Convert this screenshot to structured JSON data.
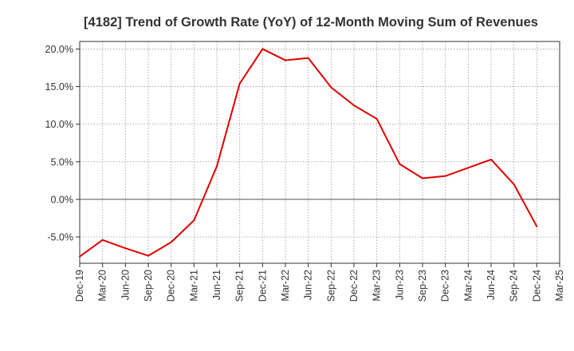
{
  "chart_data": {
    "type": "line",
    "title": "[4182]  Trend of Growth Rate (YoY) of 12-Month Moving Sum of Revenues",
    "xlabel": "",
    "ylabel": "",
    "x": [
      "Dec-19",
      "Mar-20",
      "Jun-20",
      "Sep-20",
      "Dec-20",
      "Mar-21",
      "Jun-21",
      "Sep-21",
      "Dec-21",
      "Mar-22",
      "Jun-22",
      "Sep-22",
      "Dec-22",
      "Mar-23",
      "Jun-23",
      "Sep-23",
      "Dec-23",
      "Mar-24",
      "Jun-24",
      "Sep-24",
      "Dec-24",
      "Mar-25"
    ],
    "y_tick_labels": [
      "-5.0%",
      "0.0%",
      "5.0%",
      "10.0%",
      "15.0%",
      "20.0%"
    ],
    "y_tick_values": [
      -5,
      0,
      5,
      10,
      15,
      20
    ],
    "ylim": [
      -8.5,
      21
    ],
    "grid": true,
    "line_color": "#e00000",
    "series": [
      {
        "values": [
          -7.6,
          -5.4,
          -6.5,
          -7.5,
          -5.7,
          -2.8,
          4.4,
          15.4,
          20.0,
          18.5,
          18.8,
          14.9,
          12.5,
          10.7,
          4.7,
          2.8,
          3.1,
          4.2,
          5.3,
          2.0,
          -3.6,
          null
        ]
      }
    ]
  }
}
